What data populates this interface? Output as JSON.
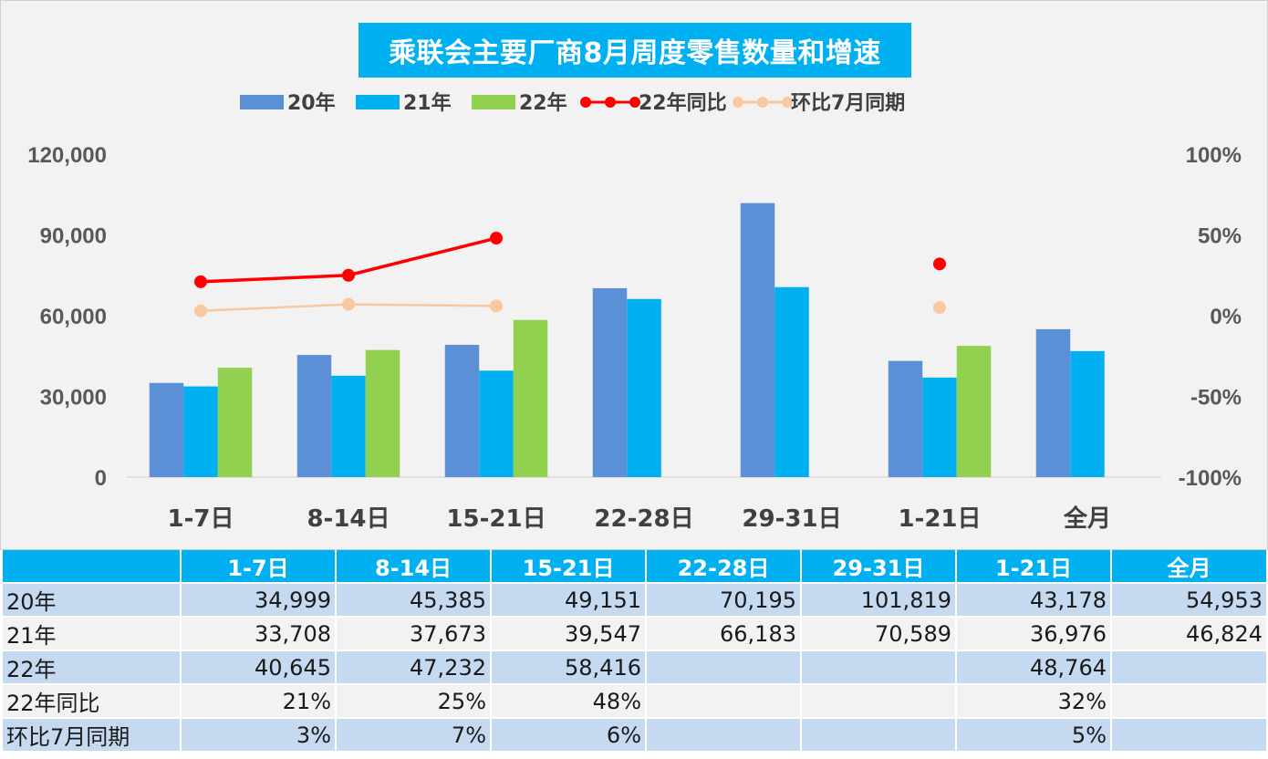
{
  "title": "乘联会主要厂商8月周度零售数量和增速",
  "colors": {
    "s20": "#5b8fd6",
    "s21": "#00b0f0",
    "s22": "#92d050",
    "yoy": "#ff0000",
    "mom": "#f8c8a0",
    "title_bg": "#00b0f0"
  },
  "chart_data": {
    "type": "bar",
    "categories": [
      "1-7日",
      "8-14日",
      "15-21日",
      "22-28日",
      "29-31日",
      "1-21日",
      "全月"
    ],
    "series": [
      {
        "name": "20年",
        "kind": "bar",
        "values": [
          34999,
          45385,
          49151,
          70195,
          101819,
          43178,
          54953
        ]
      },
      {
        "name": "21年",
        "kind": "bar",
        "values": [
          33708,
          37673,
          39547,
          66183,
          70589,
          36976,
          46824
        ]
      },
      {
        "name": "22年",
        "kind": "bar",
        "values": [
          40645,
          47232,
          58416,
          null,
          null,
          48764,
          null
        ]
      },
      {
        "name": "22年同比",
        "kind": "line",
        "axis": "right",
        "values": [
          0.21,
          0.25,
          0.48,
          null,
          null,
          0.32,
          null
        ]
      },
      {
        "name": "环比7月同期",
        "kind": "line",
        "axis": "right",
        "values": [
          0.03,
          0.07,
          0.06,
          null,
          null,
          0.05,
          null
        ]
      }
    ],
    "ylim": [
      0,
      120000
    ],
    "yticks": [
      "0",
      "30,000",
      "60,000",
      "90,000",
      "120,000"
    ],
    "y2lim": [
      -1,
      1
    ],
    "y2ticks": [
      "-100%",
      "-50%",
      "0%",
      "50%",
      "100%"
    ],
    "legend_position": "top",
    "grid": false
  },
  "table": {
    "header": [
      "",
      "1-7日",
      "8-14日",
      "15-21日",
      "22-28日",
      "29-31日",
      "1-21日",
      "全月"
    ],
    "rows": [
      {
        "label": "20年",
        "cells": [
          "34,999",
          "45,385",
          "49,151",
          "70,195",
          "101,819",
          "43,178",
          "54,953"
        ]
      },
      {
        "label": "21年",
        "cells": [
          "33,708",
          "37,673",
          "39,547",
          "66,183",
          "70,589",
          "36,976",
          "46,824"
        ]
      },
      {
        "label": "22年",
        "cells": [
          "40,645",
          "47,232",
          "58,416",
          "",
          "",
          "48,764",
          ""
        ]
      },
      {
        "label": "22年同比",
        "cells": [
          "21%",
          "25%",
          "48%",
          "",
          "",
          "32%",
          ""
        ]
      },
      {
        "label": "环比7月同期",
        "cells": [
          "3%",
          "7%",
          "6%",
          "",
          "",
          "5%",
          ""
        ]
      }
    ]
  }
}
